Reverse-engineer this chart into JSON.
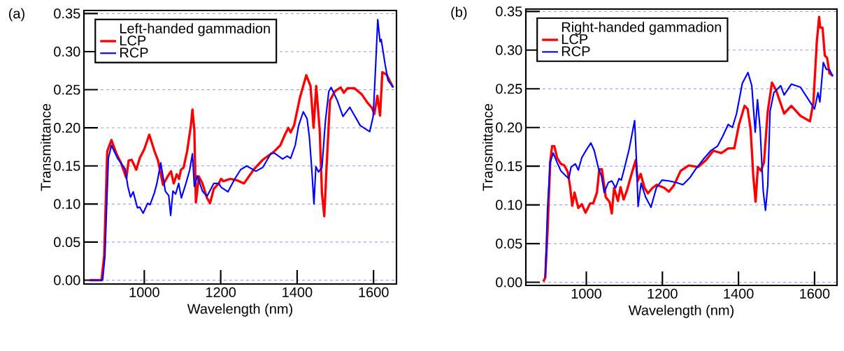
{
  "chart_data": [
    {
      "type": "line",
      "title": "(a)",
      "xlabel": "Wavelength (nm)",
      "ylabel": "Transmittance",
      "legend_title": "Left-handed gammadion",
      "legend": "top left",
      "grid": "y",
      "xlim": [
        842,
        1660
      ],
      "ylim": [
        -0.005,
        0.354
      ],
      "xticks": [
        1000,
        1200,
        1400,
        1600
      ],
      "yticks": [
        {
          "value": 0,
          "label": "0.00"
        },
        0.05,
        {
          "value": 0.1,
          "label": "0.10"
        },
        0.15,
        {
          "value": 0.2,
          "label": "0.20"
        },
        0.25,
        {
          "value": 0.3,
          "label": "0.30"
        },
        0.35
      ],
      "series": [
        {
          "name": "LCP",
          "color": "#ff0000",
          "x": [
            857,
            888,
            895,
            903,
            914,
            927,
            939,
            953,
            959,
            967,
            979,
            988,
            1000,
            1013,
            1027,
            1036,
            1049,
            1061,
            1070,
            1077,
            1085,
            1091,
            1096,
            1103,
            1112,
            1122,
            1126,
            1131,
            1135,
            1143,
            1152,
            1164,
            1172,
            1182,
            1195,
            1201,
            1207,
            1225,
            1243,
            1261,
            1286,
            1310,
            1340,
            1356,
            1368,
            1377,
            1383,
            1392,
            1407,
            1424,
            1435,
            1443,
            1450,
            1459,
            1465,
            1471,
            1477,
            1486,
            1499,
            1514,
            1522,
            1532,
            1550,
            1569,
            1584,
            1596,
            1602,
            1610,
            1617,
            1623,
            1634,
            1651
          ],
          "values": [
            0.0,
            0.0,
            0.032,
            0.169,
            0.184,
            0.166,
            0.154,
            0.134,
            0.157,
            0.158,
            0.145,
            0.16,
            0.172,
            0.191,
            0.169,
            0.157,
            0.125,
            0.136,
            0.143,
            0.127,
            0.139,
            0.133,
            0.145,
            0.148,
            0.169,
            0.203,
            0.224,
            0.197,
            0.102,
            0.136,
            0.127,
            0.108,
            0.101,
            0.12,
            0.127,
            0.133,
            0.13,
            0.133,
            0.131,
            0.127,
            0.145,
            0.158,
            0.169,
            0.177,
            0.191,
            0.2,
            0.194,
            0.203,
            0.239,
            0.269,
            0.255,
            0.2,
            0.255,
            0.197,
            0.114,
            0.084,
            0.148,
            0.236,
            0.248,
            0.253,
            0.246,
            0.252,
            0.252,
            0.244,
            0.233,
            0.226,
            0.218,
            0.242,
            0.216,
            0.273,
            0.27,
            0.253
          ]
        },
        {
          "name": "RCP",
          "color": "#0000ff",
          "x": [
            857,
            891,
            897,
            906,
            914,
            930,
            950,
            957,
            964,
            971,
            982,
            988,
            997,
            1009,
            1015,
            1026,
            1033,
            1043,
            1049,
            1055,
            1064,
            1069,
            1075,
            1082,
            1090,
            1097,
            1109,
            1119,
            1126,
            1131,
            1139,
            1152,
            1164,
            1182,
            1195,
            1201,
            1219,
            1237,
            1252,
            1268,
            1292,
            1310,
            1331,
            1340,
            1362,
            1374,
            1383,
            1395,
            1404,
            1416,
            1426,
            1432,
            1438,
            1444,
            1449,
            1456,
            1465,
            1474,
            1483,
            1489,
            1505,
            1520,
            1538,
            1565,
            1590,
            1599,
            1605,
            1611,
            1617,
            1620,
            1630,
            1638,
            1652
          ],
          "values": [
            0.0,
            0.0,
            0.032,
            0.16,
            0.177,
            0.16,
            0.146,
            0.123,
            0.109,
            0.116,
            0.095,
            0.096,
            0.088,
            0.101,
            0.099,
            0.114,
            0.127,
            0.154,
            0.136,
            0.117,
            0.111,
            0.085,
            0.117,
            0.113,
            0.127,
            0.108,
            0.127,
            0.145,
            0.166,
            0.123,
            0.137,
            0.117,
            0.11,
            0.127,
            0.127,
            0.122,
            0.116,
            0.133,
            0.145,
            0.15,
            0.143,
            0.148,
            0.166,
            0.167,
            0.159,
            0.163,
            0.16,
            0.177,
            0.203,
            0.221,
            0.212,
            0.188,
            0.148,
            0.1,
            0.149,
            0.142,
            0.148,
            0.209,
            0.248,
            0.253,
            0.236,
            0.215,
            0.227,
            0.203,
            0.195,
            0.215,
            0.276,
            0.342,
            0.313,
            0.316,
            0.284,
            0.262,
            0.253
          ]
        }
      ]
    },
    {
      "type": "line",
      "title": "(b)",
      "xlabel": "Wavelength (nm)",
      "ylabel": "Transmittance",
      "legend_title": "Right-handed gammadion",
      "legend": "top left",
      "grid": "y",
      "xlim": [
        841,
        1659
      ],
      "ylim": [
        -0.004,
        0.353
      ],
      "xticks": [
        1000,
        1200,
        1400,
        1600
      ],
      "yticks": [
        {
          "value": 0,
          "label": "0.00"
        },
        0.05,
        {
          "value": 0.1,
          "label": "0.10"
        },
        0.15,
        {
          "value": 0.2,
          "label": "0.20"
        },
        0.25,
        {
          "value": 0.3,
          "label": "0.30"
        },
        0.35
      ],
      "series": [
        {
          "name": "LCP",
          "color": "#ff0000",
          "x": [
            887,
            892,
            898,
            905,
            910,
            916,
            923,
            933,
            942,
            951,
            957,
            963,
            969,
            979,
            988,
            998,
            1010,
            1018,
            1028,
            1034,
            1041,
            1051,
            1061,
            1067,
            1073,
            1083,
            1090,
            1098,
            1107,
            1119,
            1130,
            1135,
            1143,
            1153,
            1162,
            1174,
            1185,
            1205,
            1217,
            1230,
            1248,
            1269,
            1294,
            1315,
            1334,
            1355,
            1373,
            1389,
            1401,
            1416,
            1424,
            1432,
            1439,
            1445,
            1451,
            1459,
            1467,
            1477,
            1488,
            1499,
            1520,
            1539,
            1563,
            1588,
            1597,
            1606,
            1612,
            1615,
            1621,
            1627,
            1633,
            1639,
            1648
          ],
          "values": [
            0.001,
            0.006,
            0.065,
            0.155,
            0.176,
            0.176,
            0.161,
            0.153,
            0.151,
            0.143,
            0.125,
            0.099,
            0.116,
            0.096,
            0.101,
            0.09,
            0.102,
            0.102,
            0.116,
            0.146,
            0.146,
            0.11,
            0.104,
            0.089,
            0.122,
            0.105,
            0.123,
            0.107,
            0.119,
            0.14,
            0.158,
            0.131,
            0.14,
            0.122,
            0.115,
            0.122,
            0.126,
            0.122,
            0.117,
            0.125,
            0.144,
            0.151,
            0.149,
            0.158,
            0.17,
            0.167,
            0.173,
            0.173,
            0.203,
            0.228,
            0.224,
            0.197,
            0.137,
            0.104,
            0.149,
            0.144,
            0.155,
            0.221,
            0.258,
            0.248,
            0.218,
            0.228,
            0.215,
            0.208,
            0.233,
            0.311,
            0.343,
            0.329,
            0.329,
            0.293,
            0.29,
            0.27,
            0.267
          ]
        },
        {
          "name": "RCP",
          "color": "#0000ff",
          "x": [
            892,
            898,
            905,
            913,
            923,
            933,
            945,
            954,
            960,
            971,
            979,
            988,
            1000,
            1012,
            1021,
            1031,
            1040,
            1047,
            1058,
            1067,
            1077,
            1086,
            1092,
            1101,
            1113,
            1127,
            1132,
            1136,
            1144,
            1156,
            1170,
            1184,
            1199,
            1217,
            1236,
            1254,
            1272,
            1287,
            1306,
            1327,
            1345,
            1358,
            1373,
            1384,
            1395,
            1410,
            1425,
            1435,
            1444,
            1450,
            1457,
            1465,
            1471,
            1477,
            1483,
            1493,
            1511,
            1520,
            1539,
            1563,
            1588,
            1600,
            1609,
            1614,
            1623,
            1631,
            1639,
            1648
          ],
          "values": [
            0.006,
            0.095,
            0.155,
            0.167,
            0.155,
            0.144,
            0.138,
            0.134,
            0.149,
            0.153,
            0.145,
            0.161,
            0.171,
            0.18,
            0.17,
            0.149,
            0.137,
            0.116,
            0.129,
            0.131,
            0.122,
            0.134,
            0.132,
            0.149,
            0.173,
            0.209,
            0.155,
            0.098,
            0.128,
            0.11,
            0.097,
            0.122,
            0.132,
            0.131,
            0.129,
            0.126,
            0.135,
            0.146,
            0.158,
            0.17,
            0.176,
            0.188,
            0.204,
            0.2,
            0.218,
            0.257,
            0.271,
            0.254,
            0.194,
            0.236,
            0.197,
            0.118,
            0.093,
            0.125,
            0.221,
            0.245,
            0.254,
            0.242,
            0.256,
            0.252,
            0.233,
            0.224,
            0.245,
            0.233,
            0.284,
            0.275,
            0.275,
            0.266
          ]
        }
      ]
    }
  ]
}
